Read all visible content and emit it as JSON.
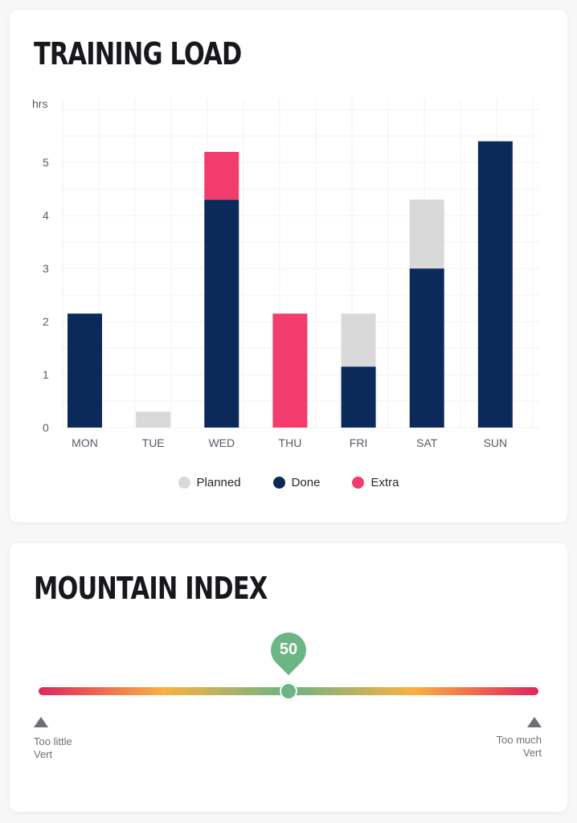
{
  "training_load": {
    "title": "TRAINING LOAD",
    "legend": [
      {
        "label": "Planned",
        "color": "#d9d9d9"
      },
      {
        "label": "Done",
        "color": "#0b2a5b"
      },
      {
        "label": "Extra",
        "color": "#f23d6c"
      }
    ]
  },
  "chart_data": {
    "type": "bar",
    "stacked": true,
    "title": "TRAINING LOAD",
    "ylabel": "hrs",
    "ylim": [
      0,
      6.2
    ],
    "yticks": [
      0,
      1,
      2,
      3,
      4,
      5
    ],
    "categories": [
      "MON",
      "TUE",
      "WED",
      "THU",
      "FRI",
      "SAT",
      "SUN"
    ],
    "series": [
      {
        "name": "Done",
        "color": "#0b2a5b",
        "values": [
          2.15,
          0,
          4.3,
          0,
          1.15,
          3.0,
          5.4
        ]
      },
      {
        "name": "Extra",
        "color": "#f23d6c",
        "values": [
          0,
          0,
          0.9,
          2.15,
          0,
          0,
          0
        ]
      },
      {
        "name": "Planned",
        "color": "#d9d9d9",
        "values": [
          0,
          0.3,
          0,
          0,
          1.0,
          1.3,
          0
        ]
      }
    ],
    "grid": true,
    "legend_position": "bottom"
  },
  "mountain_index": {
    "title": "MOUNTAIN INDEX",
    "value": "50",
    "value_fraction": 0.5,
    "pin_color": "#6cb585",
    "left_label_line1": "Too little",
    "left_label_line2": "Vert",
    "right_label_line1": "Too much",
    "right_label_line2": "Vert"
  }
}
